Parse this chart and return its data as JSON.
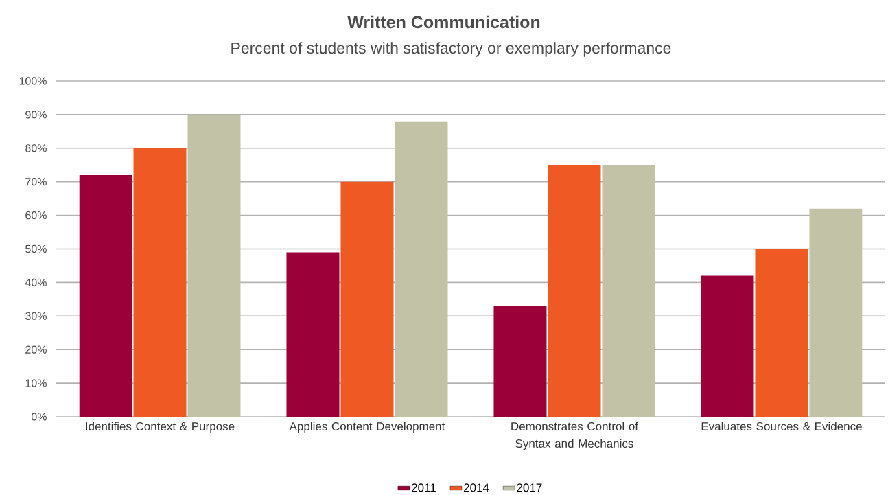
{
  "chart_data": {
    "type": "bar",
    "title": "Written Communication",
    "subtitle": "Percent of students with satisfactory or exemplary performance",
    "categories": [
      "Identifies Context & Purpose",
      "Applies Content Development",
      "Demonstrates Control of Syntax and Mechanics",
      "Evaluates Sources & Evidence"
    ],
    "series": [
      {
        "name": "2011",
        "color": "#9b0038",
        "values": [
          72,
          49,
          33,
          42
        ]
      },
      {
        "name": "2014",
        "color": "#ef5a24",
        "values": [
          80,
          70,
          75,
          50
        ]
      },
      {
        "name": "2017",
        "color": "#c2c3a6",
        "values": [
          90,
          88,
          75,
          62
        ]
      }
    ],
    "ylim": [
      0,
      100
    ],
    "yticks": [
      {
        "value": 0,
        "label": "0%"
      },
      {
        "value": 10,
        "label": "10%"
      },
      {
        "value": 20,
        "label": "20%"
      },
      {
        "value": 30,
        "label": "30%"
      },
      {
        "value": 40,
        "label": "40%"
      },
      {
        "value": 50,
        "label": "50%"
      },
      {
        "value": 60,
        "label": "60%"
      },
      {
        "value": 70,
        "label": "70%"
      },
      {
        "value": 80,
        "label": "80%"
      },
      {
        "value": 90,
        "label": "90%"
      },
      {
        "value": 100,
        "label": "100%"
      }
    ],
    "grid": "y",
    "legend": "bottom"
  }
}
